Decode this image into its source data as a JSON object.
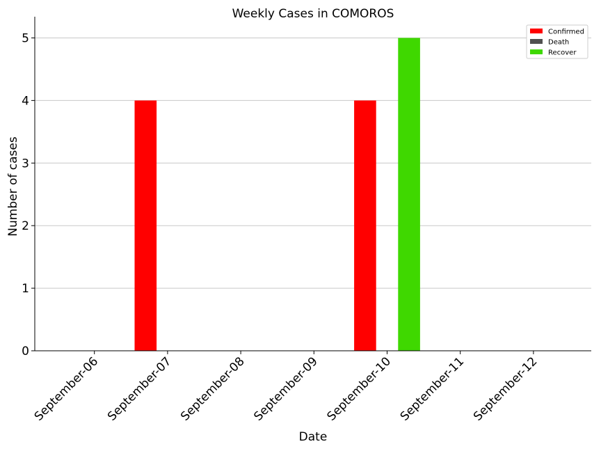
{
  "chart_data": {
    "type": "bar",
    "title": "Weekly Cases in COMOROS",
    "xlabel": "Date",
    "ylabel": "Number of cases",
    "categories": [
      "September-06",
      "September-07",
      "September-08",
      "September-09",
      "September-10",
      "September-11",
      "September-12"
    ],
    "series": [
      {
        "name": "Confirmed",
        "color": "#ff0000",
        "values": [
          0,
          4,
          0,
          0,
          4,
          0,
          0
        ]
      },
      {
        "name": "Death",
        "color": "#505050",
        "values": [
          0,
          0,
          0,
          0,
          0,
          0,
          0
        ]
      },
      {
        "name": "Recover",
        "color": "#3fd800",
        "values": [
          0,
          0,
          0,
          0,
          5,
          0,
          0
        ]
      }
    ],
    "yticks": [
      "0",
      "1",
      "2",
      "3",
      "4",
      "5"
    ],
    "ylim": [
      0,
      5.25
    ],
    "grid": "horizontal",
    "legend": "top-right"
  }
}
